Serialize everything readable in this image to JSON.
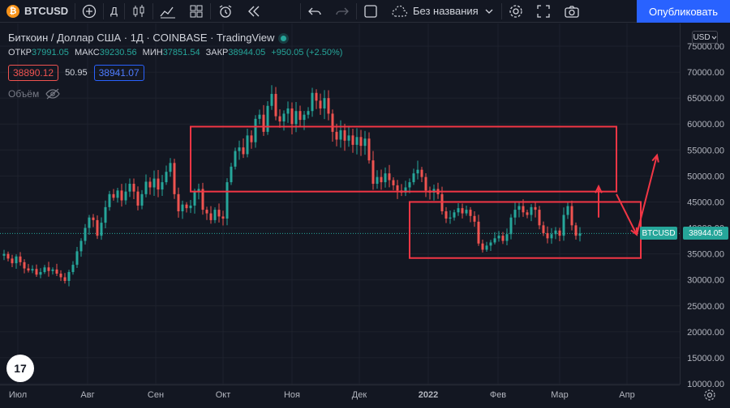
{
  "toolbar": {
    "symbol": "BTCUSD",
    "btc_glyph": "₿",
    "interval": "Д",
    "layout_name": "Без названия",
    "publish_label": "Опубликовать"
  },
  "legend": {
    "title": "Биткоин / Доллар США · 1Д · COINBASE · TradingView",
    "open_label": "ОТКР",
    "open": "37991.05",
    "high_label": "МАКС",
    "high": "39230.56",
    "low_label": "МИН",
    "low": "37851.54",
    "close_label": "ЗАКР",
    "close": "38944.05",
    "change": "+950.05 (+2.50%)",
    "sell_price": "38890.12",
    "spread": "50.95",
    "buy_price": "38941.07",
    "volume_label": "Объём"
  },
  "scale": {
    "currency": "USD"
  },
  "tv_logo": "17",
  "last_price_label": {
    "symbol": "BTCUSD",
    "price": "38944.05"
  },
  "colors": {
    "up": "#26a69a",
    "down": "#ef5350",
    "drawing": "#f23645",
    "accent": "#2962ff"
  },
  "chart_data": {
    "type": "candlestick",
    "y_ticks": [
      "75000.00",
      "70000.00",
      "65000.00",
      "60000.00",
      "55000.00",
      "50000.00",
      "45000.00",
      "40000.00",
      "35000.00",
      "30000.00",
      "25000.00",
      "20000.00",
      "15000.00",
      "10000.00"
    ],
    "ylim": [
      7000,
      77000
    ],
    "x_ticks": [
      "Июл",
      "Авг",
      "Сен",
      "Окт",
      "Ноя",
      "Дек",
      "2022",
      "Фев",
      "Мар",
      "Апр"
    ],
    "last_price": 38944.05,
    "series_close": [
      [
        0,
        35000
      ],
      [
        5,
        34100
      ],
      [
        10,
        33200
      ],
      [
        15,
        34500
      ],
      [
        20,
        33400
      ],
      [
        25,
        32200
      ],
      [
        30,
        31800
      ],
      [
        35,
        32100
      ],
      [
        40,
        31000
      ],
      [
        45,
        31500
      ],
      [
        50,
        32400
      ],
      [
        55,
        31700
      ],
      [
        60,
        32000
      ],
      [
        65,
        31200
      ],
      [
        70,
        30500
      ],
      [
        75,
        29800
      ],
      [
        80,
        31500
      ],
      [
        85,
        32900
      ],
      [
        90,
        35500
      ],
      [
        95,
        37500
      ],
      [
        100,
        40000
      ],
      [
        105,
        42000
      ],
      [
        110,
        41500
      ],
      [
        115,
        38500
      ],
      [
        120,
        41000
      ],
      [
        125,
        44000
      ],
      [
        130,
        46500
      ],
      [
        135,
        45800
      ],
      [
        140,
        47200
      ],
      [
        145,
        45300
      ],
      [
        150,
        47000
      ],
      [
        155,
        48500
      ],
      [
        160,
        47000
      ],
      [
        165,
        44300
      ],
      [
        170,
        46500
      ],
      [
        175,
        48900
      ],
      [
        180,
        47800
      ],
      [
        185,
        49500
      ],
      [
        190,
        47400
      ],
      [
        195,
        48800
      ],
      [
        200,
        50800
      ],
      [
        205,
        52500
      ],
      [
        210,
        46500
      ],
      [
        215,
        43200
      ],
      [
        220,
        44500
      ],
      [
        225,
        43800
      ],
      [
        230,
        44300
      ],
      [
        235,
        47000
      ],
      [
        240,
        47500
      ],
      [
        245,
        43500
      ],
      [
        250,
        42800
      ],
      [
        255,
        41500
      ],
      [
        260,
        43500
      ],
      [
        265,
        42200
      ],
      [
        270,
        41800
      ],
      [
        275,
        48800
      ],
      [
        280,
        51800
      ],
      [
        285,
        54800
      ],
      [
        290,
        55500
      ],
      [
        295,
        54200
      ],
      [
        300,
        57800
      ],
      [
        305,
        56500
      ],
      [
        310,
        61000
      ],
      [
        315,
        61800
      ],
      [
        320,
        58500
      ],
      [
        325,
        63500
      ],
      [
        330,
        65800
      ],
      [
        335,
        61500
      ],
      [
        340,
        60500
      ],
      [
        345,
        62000
      ],
      [
        350,
        63000
      ],
      [
        355,
        60000
      ],
      [
        360,
        62500
      ],
      [
        365,
        60800
      ],
      [
        370,
        61800
      ],
      [
        375,
        62500
      ],
      [
        380,
        66000
      ],
      [
        385,
        64500
      ],
      [
        390,
        63000
      ],
      [
        395,
        65000
      ],
      [
        400,
        62000
      ],
      [
        405,
        58500
      ],
      [
        410,
        57000
      ],
      [
        415,
        58800
      ],
      [
        420,
        56800
      ],
      [
        425,
        57800
      ],
      [
        430,
        56000
      ],
      [
        435,
        57500
      ],
      [
        440,
        55800
      ],
      [
        445,
        57200
      ],
      [
        450,
        53000
      ],
      [
        455,
        48500
      ],
      [
        460,
        49800
      ],
      [
        465,
        48800
      ],
      [
        470,
        50500
      ],
      [
        475,
        49200
      ],
      [
        480,
        48200
      ],
      [
        485,
        47200
      ],
      [
        490,
        46800
      ],
      [
        495,
        47800
      ],
      [
        500,
        48800
      ],
      [
        505,
        50500
      ],
      [
        510,
        51200
      ],
      [
        515,
        49800
      ],
      [
        520,
        47200
      ],
      [
        525,
        46800
      ],
      [
        530,
        47500
      ],
      [
        535,
        46500
      ],
      [
        540,
        43200
      ],
      [
        545,
        41800
      ],
      [
        550,
        42000
      ],
      [
        555,
        43000
      ],
      [
        560,
        43800
      ],
      [
        565,
        42800
      ],
      [
        570,
        43500
      ],
      [
        575,
        42300
      ],
      [
        580,
        41200
      ],
      [
        585,
        37000
      ],
      [
        590,
        35800
      ],
      [
        595,
        36600
      ],
      [
        600,
        37200
      ],
      [
        605,
        38000
      ],
      [
        610,
        38500
      ],
      [
        615,
        37500
      ],
      [
        620,
        38800
      ],
      [
        625,
        42000
      ],
      [
        630,
        43500
      ],
      [
        635,
        44200
      ],
      [
        640,
        43000
      ],
      [
        645,
        42500
      ],
      [
        650,
        44000
      ],
      [
        655,
        43500
      ],
      [
        660,
        40500
      ],
      [
        665,
        39000
      ],
      [
        670,
        38000
      ],
      [
        675,
        38800
      ],
      [
        680,
        39500
      ],
      [
        685,
        38500
      ],
      [
        690,
        42500
      ],
      [
        695,
        44200
      ],
      [
        700,
        40500
      ],
      [
        705,
        38500
      ],
      [
        710,
        38944
      ]
    ]
  },
  "drawings": {
    "color": "#f23645",
    "rectangles": [
      {
        "t1": 230,
        "t2": 755,
        "p1": 59500,
        "p2": 47000
      },
      {
        "t1": 500,
        "t2": 785,
        "p1": 45000,
        "p2": 34200
      }
    ],
    "arrows": [
      {
        "from": [
          755,
          46500
        ],
        "to": [
          780,
          38700
        ]
      },
      {
        "from": [
          780,
          38700
        ],
        "to": [
          805,
          54000
        ]
      },
      {
        "from": [
          733,
          42000
        ],
        "to": [
          733,
          48000
        ]
      }
    ]
  }
}
